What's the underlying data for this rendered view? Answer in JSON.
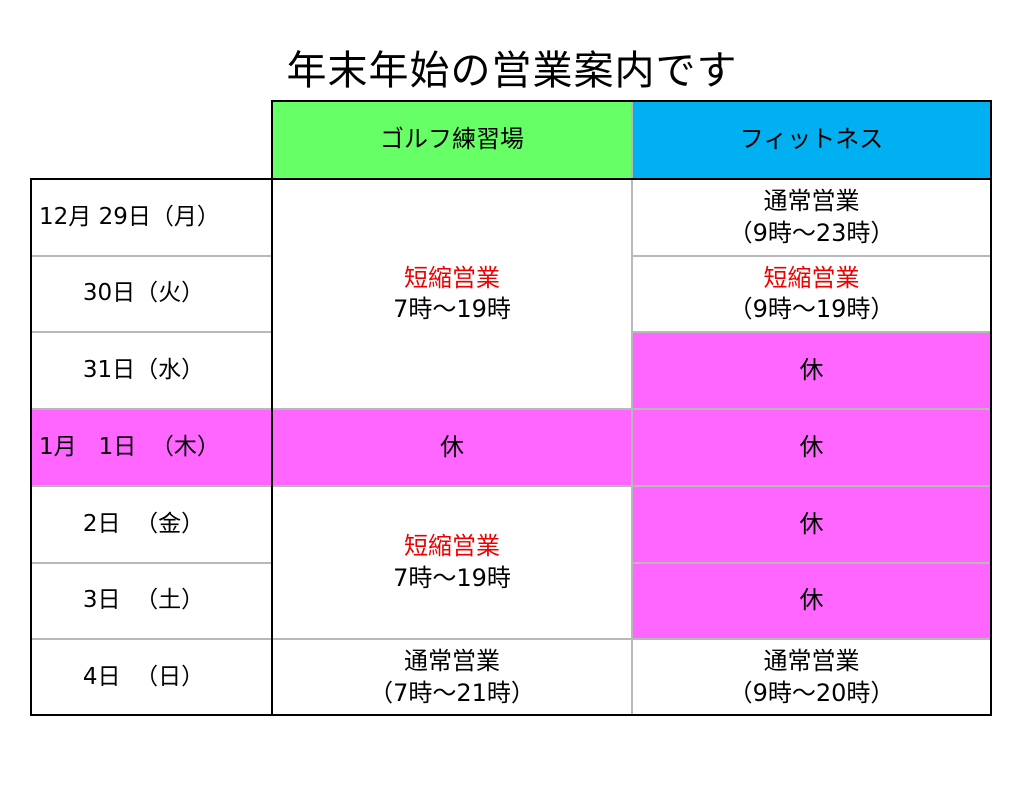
{
  "title": "年末年始の営業案内です",
  "header": {
    "golf": "ゴルフ練習場",
    "fitness": "フィットネス"
  },
  "dates": [
    "12月 29日（月）",
    "      30日（火）",
    "      31日（水）",
    "1月   1日  （木）",
    "      2日  （金）",
    "      3日  （土）",
    "      4日  （日）"
  ],
  "golf": {
    "block1": {
      "status": "短縮営業",
      "hours": "7時～19時"
    },
    "jan1": "休",
    "block2": {
      "status": "短縮営業",
      "hours": "7時～19時"
    },
    "jan4": {
      "status": "通常営業",
      "hours": "（7時～21時）"
    }
  },
  "fitness": {
    "dec29": {
      "status": "通常営業",
      "hours": "（9時～23時）"
    },
    "dec30": {
      "status": "短縮営業",
      "hours": "（9時～19時）"
    },
    "dec31": "休",
    "jan1": "休",
    "jan2": "休",
    "jan3": "休",
    "jan4": {
      "status": "通常営業",
      "hours": "（9時～20時）"
    }
  },
  "colors": {
    "golf_header": "#66ff66",
    "fitness_header": "#00b0f0",
    "closed": "#ff66ff",
    "short_hours_text": "#ee0000"
  }
}
